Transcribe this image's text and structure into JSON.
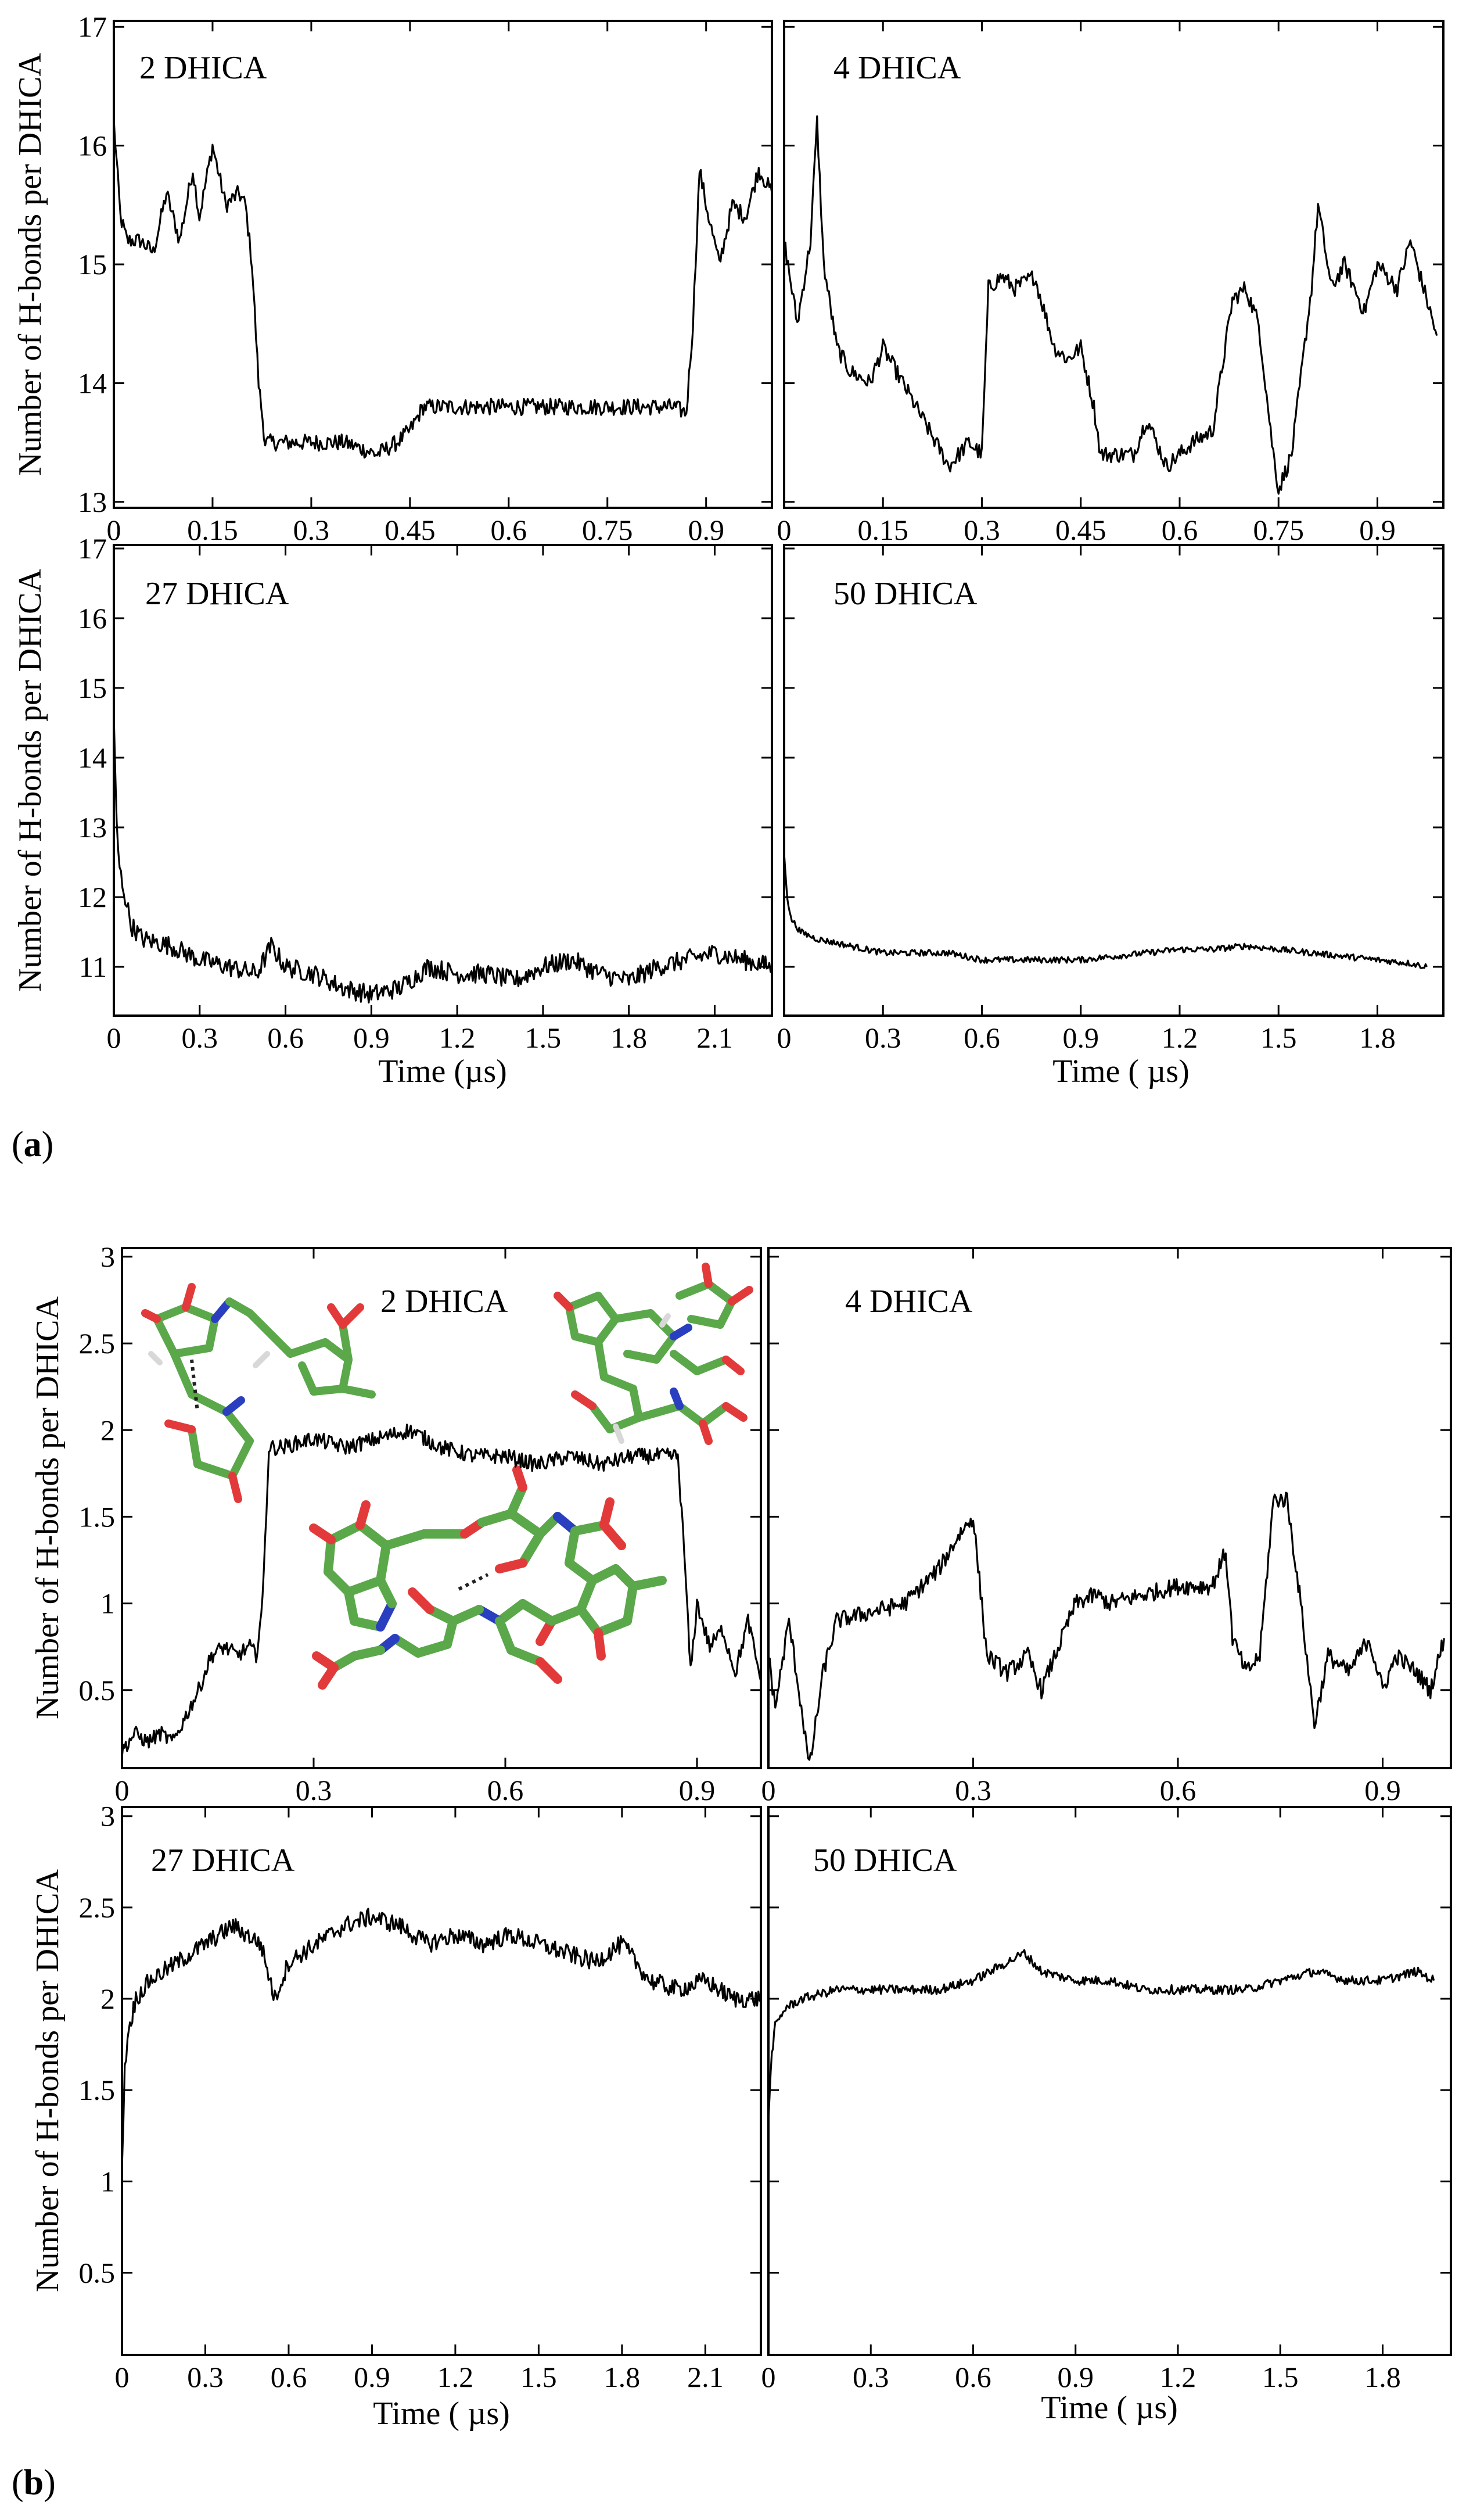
{
  "figure_labels": {
    "a": "a",
    "b": "b"
  },
  "chart_data": [
    {
      "id": "a-2",
      "figure": "a",
      "type": "line",
      "title": "2 DHICA",
      "xlabel": "",
      "ylabel": "Number of H-bonds per DHICA",
      "xlim": [
        0,
        1.0
      ],
      "ylim": [
        12.95,
        17.05
      ],
      "xticks": [
        0,
        0.15,
        0.3,
        0.45,
        0.6,
        0.75,
        0.9
      ],
      "xtick_labels": [
        "0",
        "0.15",
        "0.3",
        "0.45",
        "0.6",
        "0.75",
        "0.9"
      ],
      "yticks": [
        13,
        14,
        15,
        16,
        17
      ],
      "ytick_labels": [
        "13",
        "14",
        "15",
        "16",
        "17"
      ],
      "x": [
        0.0,
        0.01,
        0.02,
        0.04,
        0.06,
        0.08,
        0.1,
        0.11,
        0.12,
        0.13,
        0.15,
        0.17,
        0.19,
        0.2,
        0.21,
        0.22,
        0.23,
        0.25,
        0.3,
        0.35,
        0.4,
        0.43,
        0.45,
        0.47,
        0.5,
        0.55,
        0.6,
        0.65,
        0.7,
        0.75,
        0.8,
        0.85,
        0.87,
        0.88,
        0.89,
        0.9,
        0.92,
        0.94,
        0.96,
        0.98,
        1.0
      ],
      "y": [
        16.2,
        15.4,
        15.2,
        15.2,
        15.1,
        15.6,
        15.2,
        15.5,
        15.8,
        15.4,
        16.0,
        15.5,
        15.6,
        15.5,
        15.0,
        14.0,
        13.5,
        13.5,
        13.5,
        13.5,
        13.4,
        13.5,
        13.6,
        13.8,
        13.8,
        13.8,
        13.8,
        13.8,
        13.8,
        13.8,
        13.8,
        13.8,
        13.75,
        14.5,
        15.8,
        15.5,
        15.0,
        15.5,
        15.4,
        15.8,
        15.6
      ],
      "noise": 0.07
    },
    {
      "id": "a-4",
      "figure": "a",
      "type": "line",
      "title": "4 DHICA",
      "xlabel": "",
      "ylabel": "",
      "xlim": [
        0,
        1.0
      ],
      "ylim": [
        12.95,
        17.05
      ],
      "xticks": [
        0,
        0.15,
        0.3,
        0.45,
        0.6,
        0.75,
        0.9
      ],
      "xtick_labels": [
        "0",
        "0.15",
        "0.3",
        "0.45",
        "0.6",
        "0.75",
        "0.9"
      ],
      "yticks": [],
      "ytick_labels": [],
      "x": [
        0.0,
        0.02,
        0.04,
        0.05,
        0.06,
        0.08,
        0.1,
        0.13,
        0.15,
        0.18,
        0.2,
        0.22,
        0.25,
        0.28,
        0.3,
        0.31,
        0.33,
        0.35,
        0.38,
        0.41,
        0.43,
        0.45,
        0.47,
        0.48,
        0.5,
        0.53,
        0.55,
        0.58,
        0.62,
        0.65,
        0.68,
        0.7,
        0.72,
        0.74,
        0.75,
        0.77,
        0.8,
        0.81,
        0.83,
        0.85,
        0.88,
        0.9,
        0.93,
        0.95,
        0.97,
        0.99
      ],
      "y": [
        15.2,
        14.5,
        15.2,
        16.2,
        15.0,
        14.3,
        14.1,
        14.0,
        14.3,
        14.0,
        13.8,
        13.6,
        13.3,
        13.5,
        13.4,
        14.8,
        14.9,
        14.8,
        14.9,
        14.3,
        14.2,
        14.3,
        13.8,
        13.4,
        13.4,
        13.4,
        13.7,
        13.3,
        13.5,
        13.6,
        14.7,
        14.8,
        14.5,
        13.5,
        13.1,
        13.4,
        14.8,
        15.5,
        14.8,
        15.0,
        14.6,
        15.0,
        14.8,
        15.2,
        14.8,
        14.4
      ],
      "noise": 0.07
    },
    {
      "id": "a-27",
      "figure": "a",
      "type": "line",
      "title": "27 DHICA",
      "xlabel": "Time (µs)",
      "ylabel": "Number of H-bonds per DHICA",
      "xlim": [
        0,
        2.3
      ],
      "ylim": [
        10.3,
        17.05
      ],
      "xticks": [
        0,
        0.3,
        0.6,
        0.9,
        1.2,
        1.5,
        1.8,
        2.1
      ],
      "xtick_labels": [
        "0",
        "0.3",
        "0.6",
        "0.9",
        "1.2",
        "1.5",
        "1.8",
        "2.1"
      ],
      "yticks": [
        11,
        12,
        13,
        14,
        15,
        16,
        17
      ],
      "ytick_labels": [
        "11",
        "12",
        "13",
        "14",
        "15",
        "16",
        "17"
      ],
      "x": [
        0.0,
        0.01,
        0.02,
        0.04,
        0.06,
        0.1,
        0.2,
        0.3,
        0.4,
        0.5,
        0.55,
        0.6,
        0.7,
        0.8,
        0.9,
        1.0,
        1.1,
        1.2,
        1.3,
        1.4,
        1.5,
        1.6,
        1.7,
        1.8,
        1.9,
        2.0,
        2.1,
        2.2,
        2.3
      ],
      "y": [
        14.5,
        13.0,
        12.4,
        12.0,
        11.6,
        11.4,
        11.3,
        11.1,
        11.0,
        10.9,
        11.3,
        11.0,
        10.9,
        10.7,
        10.6,
        10.7,
        11.0,
        10.9,
        10.9,
        10.8,
        11.0,
        11.1,
        10.9,
        10.8,
        11.0,
        11.1,
        11.2,
        11.1,
        11.0
      ],
      "noise": 0.14
    },
    {
      "id": "a-50",
      "figure": "a",
      "type": "line",
      "title": "50 DHICA",
      "xlabel": "Time ( µs)",
      "ylabel": "",
      "xlim": [
        0,
        2.0
      ],
      "ylim": [
        10.3,
        17.05
      ],
      "xticks": [
        0,
        0.3,
        0.6,
        0.9,
        1.2,
        1.5,
        1.8
      ],
      "xtick_labels": [
        "0",
        "0.3",
        "0.6",
        "0.9",
        "1.2",
        "1.5",
        "1.8"
      ],
      "yticks": [],
      "ytick_labels": [],
      "x": [
        0.0,
        0.01,
        0.02,
        0.05,
        0.1,
        0.2,
        0.3,
        0.4,
        0.5,
        0.6,
        0.7,
        0.8,
        0.9,
        1.0,
        1.1,
        1.2,
        1.3,
        1.4,
        1.5,
        1.6,
        1.7,
        1.8,
        1.9,
        1.95
      ],
      "y": [
        12.6,
        12.0,
        11.7,
        11.5,
        11.4,
        11.3,
        11.2,
        11.2,
        11.2,
        11.1,
        11.1,
        11.1,
        11.1,
        11.15,
        11.2,
        11.25,
        11.25,
        11.3,
        11.25,
        11.2,
        11.15,
        11.1,
        11.05,
        11.0
      ],
      "noise": 0.045
    },
    {
      "id": "b-2",
      "figure": "b",
      "type": "line",
      "title": "2 DHICA",
      "xlabel": "",
      "ylabel": "Number of H-bonds per DHICA",
      "xlim": [
        0,
        1.0
      ],
      "ylim": [
        0.05,
        3.05
      ],
      "xticks": [
        0,
        0.3,
        0.6,
        0.9
      ],
      "xtick_labels": [
        "0",
        "0.3",
        "0.6",
        "0.9"
      ],
      "yticks": [
        0.5,
        1,
        1.5,
        2,
        2.5,
        3
      ],
      "ytick_labels": [
        "0.5",
        "1",
        "1.5",
        "2",
        "2.5",
        "3"
      ],
      "x": [
        0.0,
        0.02,
        0.04,
        0.06,
        0.08,
        0.1,
        0.12,
        0.14,
        0.16,
        0.18,
        0.2,
        0.21,
        0.22,
        0.23,
        0.25,
        0.3,
        0.35,
        0.4,
        0.45,
        0.5,
        0.55,
        0.6,
        0.65,
        0.7,
        0.75,
        0.8,
        0.85,
        0.87,
        0.88,
        0.89,
        0.9,
        0.92,
        0.94,
        0.96,
        0.98,
        1.0
      ],
      "y": [
        0.15,
        0.25,
        0.2,
        0.25,
        0.2,
        0.35,
        0.5,
        0.7,
        0.75,
        0.7,
        0.75,
        0.7,
        1.0,
        1.9,
        1.9,
        1.95,
        1.9,
        1.95,
        2.0,
        1.9,
        1.85,
        1.85,
        1.8,
        1.85,
        1.8,
        1.85,
        1.85,
        1.85,
        1.3,
        0.6,
        1.0,
        0.75,
        0.85,
        0.6,
        0.9,
        0.55
      ],
      "noise": 0.045
    },
    {
      "id": "b-4",
      "figure": "b",
      "type": "line",
      "title": "4 DHICA",
      "xlabel": "",
      "ylabel": "",
      "xlim": [
        0,
        1.0
      ],
      "ylim": [
        0.05,
        3.05
      ],
      "xticks": [
        0,
        0.3,
        0.6,
        0.9
      ],
      "xtick_labels": [
        "0",
        "0.3",
        "0.6",
        "0.9"
      ],
      "yticks": [],
      "ytick_labels": [],
      "x": [
        0.0,
        0.01,
        0.03,
        0.05,
        0.06,
        0.08,
        0.1,
        0.15,
        0.2,
        0.25,
        0.28,
        0.3,
        0.32,
        0.35,
        0.38,
        0.4,
        0.43,
        0.45,
        0.48,
        0.5,
        0.55,
        0.6,
        0.65,
        0.67,
        0.68,
        0.7,
        0.72,
        0.74,
        0.76,
        0.78,
        0.8,
        0.82,
        0.85,
        0.88,
        0.9,
        0.92,
        0.95,
        0.97,
        0.99
      ],
      "y": [
        0.7,
        0.4,
        0.9,
        0.35,
        0.05,
        0.6,
        0.9,
        0.95,
        1.0,
        1.2,
        1.4,
        1.5,
        0.7,
        0.6,
        0.7,
        0.5,
        0.8,
        1.0,
        1.05,
        1.0,
        1.05,
        1.1,
        1.1,
        1.3,
        0.8,
        0.6,
        0.7,
        1.6,
        1.6,
        1.0,
        0.3,
        0.7,
        0.6,
        0.8,
        0.5,
        0.7,
        0.6,
        0.5,
        0.8
      ],
      "noise": 0.05
    },
    {
      "id": "b-27",
      "figure": "b",
      "type": "line",
      "title": "27 DHICA",
      "xlabel": "Time ( µs)",
      "ylabel": "Number of H-bonds per DHICA",
      "xlim": [
        0,
        2.3
      ],
      "ylim": [
        0.05,
        3.05
      ],
      "xticks": [
        0,
        0.3,
        0.6,
        0.9,
        1.2,
        1.5,
        1.8,
        2.1
      ],
      "xtick_labels": [
        "0",
        "0.3",
        "0.6",
        "0.9",
        "1.2",
        "1.5",
        "1.8",
        "2.1"
      ],
      "yticks": [
        0.5,
        1,
        1.5,
        2,
        2.5,
        3
      ],
      "ytick_labels": [
        "0.5",
        "1",
        "1.5",
        "2",
        "2.5",
        "3"
      ],
      "x": [
        0.0,
        0.01,
        0.02,
        0.05,
        0.1,
        0.2,
        0.3,
        0.4,
        0.5,
        0.55,
        0.6,
        0.7,
        0.8,
        0.9,
        1.0,
        1.1,
        1.2,
        1.3,
        1.4,
        1.5,
        1.6,
        1.7,
        1.8,
        1.9,
        2.0,
        2.1,
        2.2,
        2.3
      ],
      "y": [
        1.1,
        1.6,
        1.8,
        2.0,
        2.1,
        2.2,
        2.3,
        2.4,
        2.3,
        2.0,
        2.2,
        2.3,
        2.4,
        2.45,
        2.4,
        2.3,
        2.35,
        2.3,
        2.35,
        2.3,
        2.25,
        2.2,
        2.3,
        2.1,
        2.05,
        2.1,
        2.0,
        2.0
      ],
      "noise": 0.05
    },
    {
      "id": "b-50",
      "figure": "b",
      "type": "line",
      "title": "50 DHICA",
      "xlabel": "Time ( µs)",
      "ylabel": "",
      "xlim": [
        0,
        2.0
      ],
      "ylim": [
        0.05,
        3.05
      ],
      "xticks": [
        0,
        0.3,
        0.6,
        0.9,
        1.2,
        1.5,
        1.8
      ],
      "xtick_labels": [
        "0",
        "0.3",
        "0.6",
        "0.9",
        "1.2",
        "1.5",
        "1.8"
      ],
      "yticks": [],
      "ytick_labels": [],
      "x": [
        0.0,
        0.01,
        0.02,
        0.05,
        0.1,
        0.2,
        0.3,
        0.4,
        0.5,
        0.6,
        0.7,
        0.75,
        0.8,
        0.9,
        1.0,
        1.1,
        1.2,
        1.3,
        1.4,
        1.5,
        1.6,
        1.7,
        1.8,
        1.9,
        1.95
      ],
      "y": [
        1.35,
        1.7,
        1.85,
        1.95,
        2.0,
        2.05,
        2.05,
        2.05,
        2.05,
        2.1,
        2.2,
        2.25,
        2.15,
        2.1,
        2.1,
        2.05,
        2.05,
        2.05,
        2.05,
        2.1,
        2.15,
        2.1,
        2.1,
        2.15,
        2.1
      ],
      "noise": 0.025
    }
  ]
}
